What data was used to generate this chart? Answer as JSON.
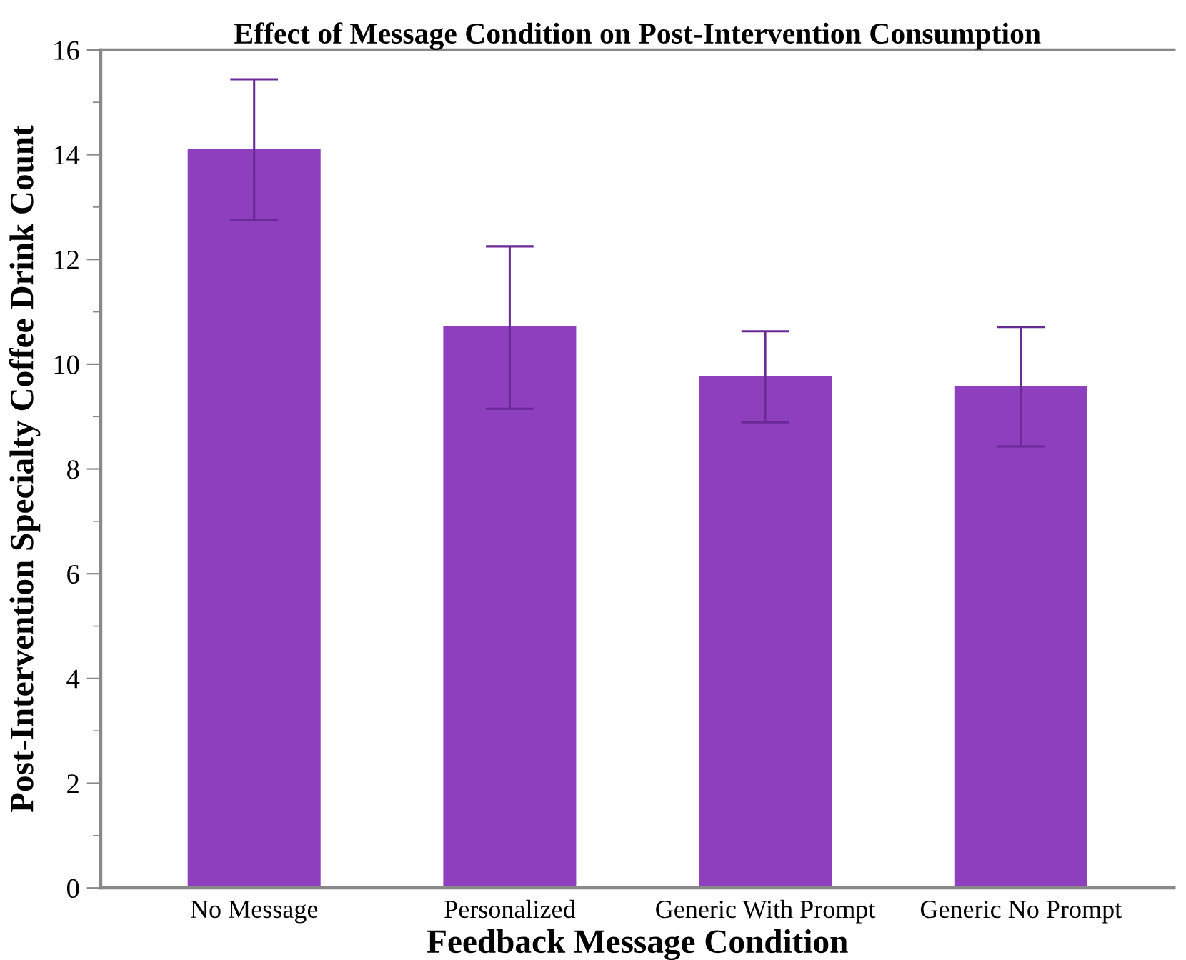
{
  "chart_data": {
    "type": "bar",
    "title": "Effect of Message Condition on Post-Intervention Consumption",
    "xlabel": "Feedback Message Condition",
    "ylabel": "Post-Intervention Specialty Coffee Drink Count",
    "categories": [
      "No Message",
      "Personalized",
      "Generic With Prompt",
      "Generic No Prompt"
    ],
    "values": [
      14.11,
      10.72,
      9.78,
      9.58
    ],
    "errors": [
      [
        12.76,
        15.44
      ],
      [
        9.15,
        12.25
      ],
      [
        8.89,
        10.63
      ],
      [
        8.43,
        10.71
      ]
    ],
    "color": "#8e3fbe",
    "ylim": [
      0,
      16
    ],
    "yticks": [
      0,
      {
        "value": 1,
        "label": null
      },
      2,
      {
        "value": 3,
        "label": null
      },
      4,
      {
        "value": 5,
        "label": null
      },
      6,
      {
        "value": 7,
        "label": null
      },
      8,
      {
        "value": 9,
        "label": null
      },
      10,
      {
        "value": 11,
        "label": null
      },
      12,
      {
        "value": 13,
        "label": null
      },
      14,
      {
        "value": 15,
        "label": null
      },
      16
    ],
    "grid": false
  }
}
